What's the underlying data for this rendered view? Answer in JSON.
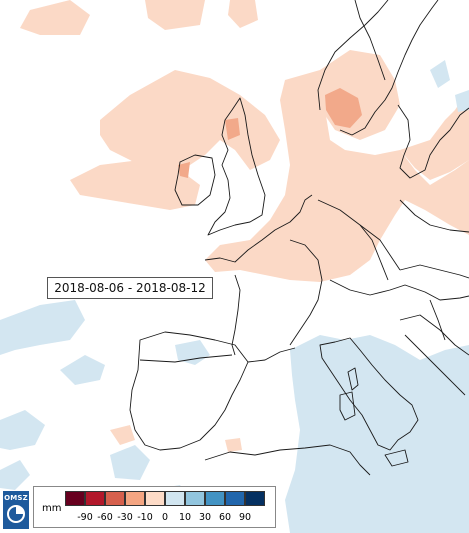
{
  "period": {
    "label": "2018-08-06 - 2018-08-12"
  },
  "legend": {
    "unit": "mm",
    "colors": [
      "#67001f",
      "#b2182b",
      "#d6604d",
      "#f4a582",
      "#fddbc7",
      "#d1e5f0",
      "#92c5de",
      "#4393c3",
      "#2166ac",
      "#053061"
    ],
    "ticks": [
      "-90",
      "-60",
      "-30",
      "-10",
      "0",
      "10",
      "30",
      "60",
      "90"
    ]
  },
  "logo": {
    "text": "OMSZ",
    "accent": "#1e5a9c"
  }
}
